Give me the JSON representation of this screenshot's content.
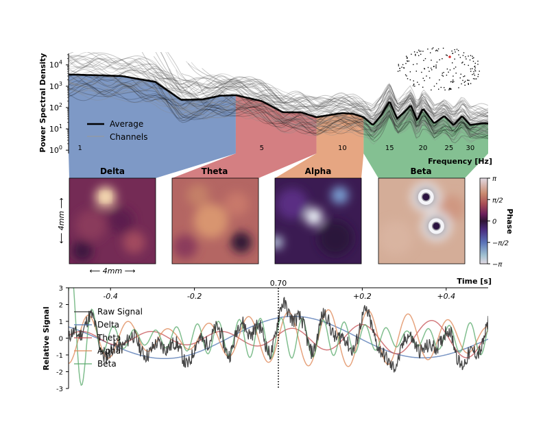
{
  "figure": {
    "band_names": [
      "Delta",
      "Theta",
      "Alpha",
      "Beta"
    ],
    "colors": {
      "delta": "#4c72b0",
      "theta": "#c44e52",
      "alpha": "#dd8452",
      "beta": "#55a868",
      "average": "#000000",
      "channels": "#888888",
      "raw": "#333333"
    }
  },
  "chart_data": [
    {
      "type": "line",
      "ylabel": "Power Spectral Density",
      "xlabel": "Frequency [Hz]",
      "xscale": "log",
      "yscale": "log",
      "xlim": [
        0.95,
        35
      ],
      "ylim": [
        0.7,
        40000
      ],
      "xticks": [
        1,
        5,
        10,
        15,
        20,
        25,
        30
      ],
      "yticks": [
        "10^0",
        "10^1",
        "10^2",
        "10^3",
        "10^4"
      ],
      "legend": {
        "placement": "lower-left",
        "entries": [
          "Average",
          "Channels"
        ]
      },
      "bands": [
        {
          "name": "Delta",
          "range": [
            0.95,
            4
          ]
        },
        {
          "name": "Theta",
          "range": [
            4,
            8
          ]
        },
        {
          "name": "Alpha",
          "range": [
            8,
            12
          ]
        },
        {
          "name": "Beta",
          "range": [
            12,
            35
          ]
        }
      ],
      "average": {
        "x": [
          1,
          1.5,
          2,
          2.5,
          3,
          3.5,
          4,
          5,
          6,
          7,
          8,
          9,
          10,
          11,
          12,
          13,
          14,
          15,
          16,
          17,
          18,
          19,
          20,
          22,
          24,
          26,
          28,
          30,
          33
        ],
        "y": [
          3500,
          3000,
          1600,
          230,
          240,
          360,
          380,
          200,
          60,
          60,
          35,
          45,
          55,
          50,
          35,
          15,
          45,
          200,
          30,
          60,
          130,
          25,
          90,
          18,
          40,
          15,
          40,
          15,
          18
        ]
      }
    },
    {
      "type": "heatmap",
      "panels": [
        "Delta",
        "Theta",
        "Alpha",
        "Beta"
      ],
      "scale_label_x": "4mm",
      "scale_label_y": "4mm",
      "colorbar": {
        "label": "Phase",
        "ticks": [
          "π",
          "π/2",
          "0",
          "−π/2",
          "−π"
        ]
      }
    },
    {
      "type": "line",
      "ylabel": "Relative Signal",
      "xlabel": "Time [s]",
      "xlim": [
        -0.5,
        0.5
      ],
      "ylim": [
        -3,
        3
      ],
      "yticks": [
        3,
        2,
        1,
        0,
        -1,
        -2,
        -3
      ],
      "xticks": [
        {
          "value": -0.4,
          "label": "-0.4"
        },
        {
          "value": -0.2,
          "label": "-0.2"
        },
        {
          "value": 0.2,
          "label": "+0.2"
        },
        {
          "value": 0.4,
          "label": "+0.4"
        }
      ],
      "marker": {
        "value": 0,
        "label": "0.70"
      },
      "legend": {
        "placement": "upper-left",
        "entries": [
          "Raw Signal",
          "Delta",
          "Theta",
          "Alpha",
          "Beta"
        ]
      }
    }
  ]
}
